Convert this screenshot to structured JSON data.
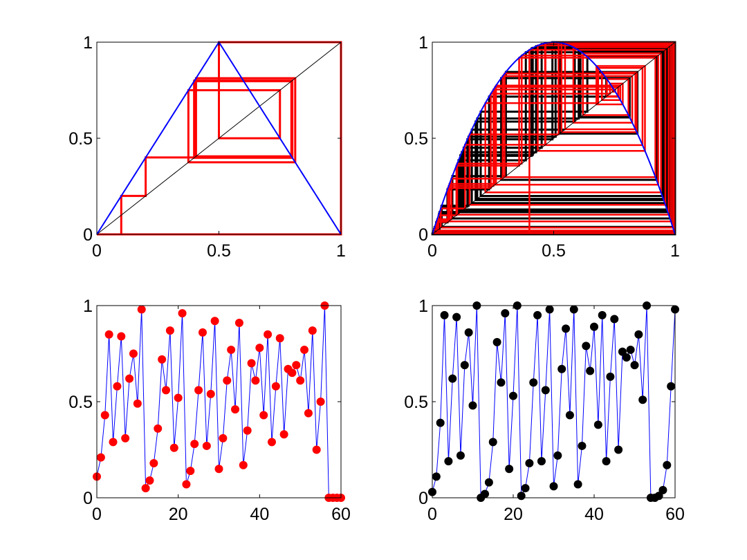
{
  "chart_data": [
    {
      "type": "line",
      "description_panel": "top-left",
      "map": "tent",
      "curve_color": "#0000ff",
      "web_color": "#ff0000",
      "diagonal": true,
      "x0": 0.1,
      "steps": 60,
      "xlim": [
        0,
        1
      ],
      "ylim": [
        0,
        1
      ],
      "xticks": [
        "0",
        "0.5",
        "1"
      ],
      "yticks": [
        "0",
        "0.5",
        "1"
      ],
      "grid": false
    },
    {
      "type": "line",
      "description_panel": "top-right",
      "map": "logistic",
      "r": 4,
      "curve_color": "#0000ff",
      "web_colors": [
        "#ff0000",
        "#000000"
      ],
      "diagonal": true,
      "x0_red": 0.4,
      "x0_black": 0.03,
      "steps": 60,
      "xlim": [
        0,
        1
      ],
      "ylim": [
        0,
        1
      ],
      "xticks": [
        "0",
        "0.5",
        "1"
      ],
      "yticks": [
        "0",
        "0.5",
        "1"
      ],
      "grid": false
    },
    {
      "type": "scatter",
      "description_panel": "bottom-left",
      "line_color": "#0000ff",
      "marker_color": "#ff0000",
      "x": [
        0,
        1,
        2,
        3,
        4,
        5,
        6,
        7,
        8,
        9,
        10,
        11,
        12,
        13,
        14,
        15,
        16,
        17,
        18,
        19,
        20,
        21,
        22,
        23,
        24,
        25,
        26,
        27,
        28,
        29,
        30,
        31,
        32,
        33,
        34,
        35,
        36,
        37,
        38,
        39,
        40,
        41,
        42,
        43,
        44,
        45,
        46,
        47,
        48,
        49,
        50,
        51,
        52,
        53,
        54,
        55,
        56,
        57,
        58,
        59,
        60
      ],
      "y": [
        0.11,
        0.21,
        0.43,
        0.85,
        0.29,
        0.58,
        0.84,
        0.31,
        0.62,
        0.75,
        0.49,
        0.98,
        0.05,
        0.09,
        0.18,
        0.36,
        0.72,
        0.56,
        0.87,
        0.26,
        0.52,
        0.96,
        0.07,
        0.14,
        0.28,
        0.56,
        0.86,
        0.27,
        0.54,
        0.92,
        0.15,
        0.31,
        0.61,
        0.77,
        0.46,
        0.91,
        0.17,
        0.35,
        0.7,
        0.61,
        0.78,
        0.43,
        0.85,
        0.29,
        0.58,
        0.83,
        0.33,
        0.67,
        0.65,
        0.69,
        0.61,
        0.77,
        0.44,
        0.87,
        0.25,
        0.5,
        1.0,
        0.0,
        0.0,
        0.0,
        0.0
      ],
      "xlim": [
        0,
        60
      ],
      "ylim": [
        0,
        1
      ],
      "xticks": [
        "0",
        "20",
        "40",
        "60"
      ],
      "yticks": [
        "0",
        "0.5",
        "1"
      ],
      "grid": false
    },
    {
      "type": "scatter",
      "description_panel": "bottom-right",
      "line_color": "#0000ff",
      "marker_color": "#000000",
      "x": [
        0,
        1,
        2,
        3,
        4,
        5,
        6,
        7,
        8,
        9,
        10,
        11,
        12,
        13,
        14,
        15,
        16,
        17,
        18,
        19,
        20,
        21,
        22,
        23,
        24,
        25,
        26,
        27,
        28,
        29,
        30,
        31,
        32,
        33,
        34,
        35,
        36,
        37,
        38,
        39,
        40,
        41,
        42,
        43,
        44,
        45,
        46,
        47,
        48,
        49,
        50,
        51,
        52,
        53,
        54,
        55,
        56,
        57,
        58,
        59,
        60
      ],
      "y": [
        0.03,
        0.11,
        0.39,
        0.95,
        0.19,
        0.62,
        0.94,
        0.22,
        0.69,
        0.86,
        0.48,
        1.0,
        0.0,
        0.02,
        0.08,
        0.29,
        0.81,
        0.6,
        0.96,
        0.15,
        0.53,
        1.0,
        0.01,
        0.05,
        0.18,
        0.6,
        0.95,
        0.19,
        0.56,
        0.98,
        0.06,
        0.22,
        0.67,
        0.88,
        0.43,
        0.98,
        0.07,
        0.27,
        0.79,
        0.66,
        0.89,
        0.38,
        0.95,
        0.19,
        0.63,
        0.93,
        0.25,
        0.76,
        0.73,
        0.77,
        0.69,
        0.85,
        0.51,
        1.0,
        0.0,
        0.0,
        0.01,
        0.04,
        0.17,
        0.58,
        0.98
      ],
      "xlim": [
        0,
        60
      ],
      "ylim": [
        0,
        1
      ],
      "xticks": [
        "0",
        "20",
        "40",
        "60"
      ],
      "yticks": [
        "0",
        "0.5",
        "1"
      ],
      "grid": false
    }
  ]
}
